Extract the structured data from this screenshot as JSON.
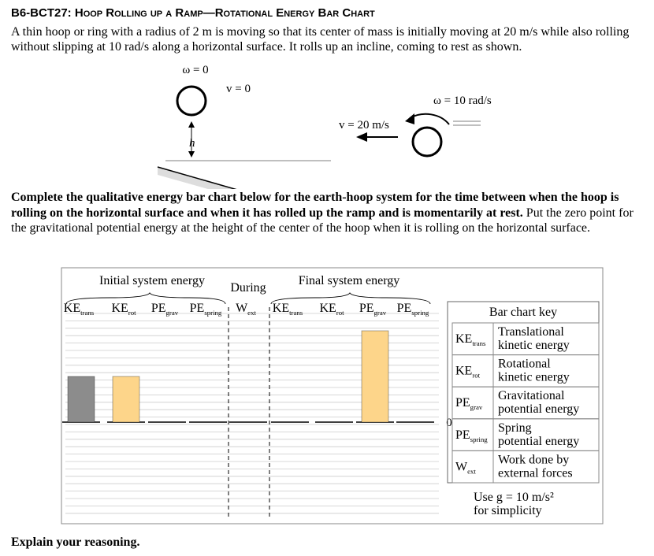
{
  "header": {
    "code": "B6-BCT27:",
    "title": "Hoop Rolling up a Ramp—Rotational Energy Bar Chart"
  },
  "intro": "A thin hoop or ring with a radius of 2 m is moving so that its center of mass is initially moving at 20 m/s while also rolling without slipping at 10 rad/s along a horizontal surface. It rolls up an incline, coming to rest as shown.",
  "diagram": {
    "omega_top": "ω = 0",
    "v_top": "v = 0",
    "h": "h",
    "v_bottom": "v = 20 m/s",
    "omega_bottom": "ω = 10 rad/s"
  },
  "instructions": {
    "bold": "Complete the qualitative energy bar chart below for the earth-hoop system for the time between when the hoop is rolling on the horizontal surface and when it has rolled up the ramp and is momentarily at rest.",
    "normal": "Put the zero point for the gravitational potential energy at the height of the center of the hoop when it is rolling on the horizontal surface."
  },
  "chart": {
    "initial_label": "Initial system energy",
    "during_label": "During",
    "final_label": "Final system energy",
    "zero_label": "0",
    "columns": [
      {
        "main": "KE",
        "sub": "trans"
      },
      {
        "main": "KE",
        "sub": "rot"
      },
      {
        "main": "PE",
        "sub": "grav"
      },
      {
        "main": "PE",
        "sub": "spring"
      },
      {
        "main": "W",
        "sub": "ext"
      },
      {
        "main": "KE",
        "sub": "trans"
      },
      {
        "main": "KE",
        "sub": "rot"
      },
      {
        "main": "PE",
        "sub": "grav"
      },
      {
        "main": "PE",
        "sub": "spring"
      }
    ],
    "values": [
      2,
      2,
      0,
      0,
      0,
      0,
      0,
      4,
      0
    ],
    "colors": [
      "#8c8c8c",
      "#fdd58a",
      "#fdd58a",
      "#fdd58a",
      "#fdd58a",
      "#fdd58a",
      "#fdd58a",
      "#fdd58a",
      "#fdd58a"
    ]
  },
  "key": {
    "title": "Bar chart key",
    "rows": [
      {
        "main": "KE",
        "sub": "trans",
        "desc": [
          "Translational",
          "kinetic energy"
        ]
      },
      {
        "main": "KE",
        "sub": "rot",
        "desc": [
          "Rotational",
          "kinetic energy"
        ]
      },
      {
        "main": "PE",
        "sub": "grav",
        "desc": [
          "Gravitational",
          "potential energy"
        ]
      },
      {
        "main": "PE",
        "sub": "spring",
        "desc": [
          "Spring",
          "potential energy"
        ]
      },
      {
        "main": "W",
        "sub": "ext",
        "desc": [
          "Work done by",
          "external forces"
        ]
      }
    ],
    "note": [
      "Use g = 10 m/s²",
      "for simplicity"
    ]
  },
  "footer": "Explain your reasoning."
}
